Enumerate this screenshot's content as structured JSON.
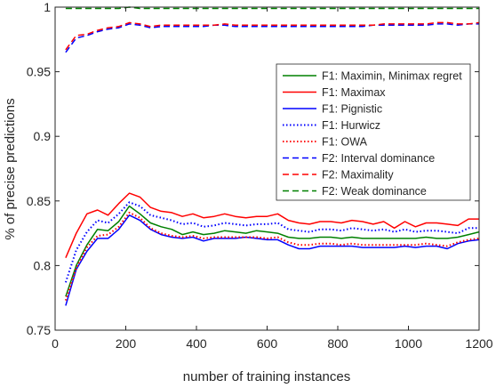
{
  "chart_data": {
    "type": "line",
    "xlabel": "number of training instances",
    "ylabel": "% of precise predictions",
    "xlim": [
      0,
      1200
    ],
    "ylim": [
      0.75,
      1
    ],
    "xticks": [
      0,
      200,
      400,
      600,
      800,
      1000,
      1200
    ],
    "yticks": [
      0.75,
      0.8,
      0.85,
      0.9,
      0.95,
      1
    ],
    "xtick_labels": [
      "0",
      "200",
      "400",
      "600",
      "800",
      "1000",
      "1200"
    ],
    "ytick_labels": [
      "0.75",
      "0.8",
      "0.85",
      "0.9",
      "0.95",
      "1"
    ],
    "grid": false,
    "legend_position": "upper-right",
    "x": [
      30,
      60,
      90,
      120,
      150,
      180,
      210,
      240,
      270,
      300,
      330,
      360,
      390,
      420,
      450,
      480,
      510,
      540,
      570,
      600,
      630,
      660,
      690,
      720,
      750,
      780,
      810,
      840,
      870,
      900,
      930,
      960,
      990,
      1020,
      1050,
      1080,
      1110,
      1140,
      1170,
      1200
    ],
    "series": [
      {
        "name": "F1: Maximin, Minimax regret",
        "color": "#008000",
        "dash": "solid",
        "values": [
          0.776,
          0.8,
          0.816,
          0.828,
          0.827,
          0.834,
          0.846,
          0.84,
          0.833,
          0.83,
          0.828,
          0.824,
          0.826,
          0.824,
          0.825,
          0.827,
          0.826,
          0.825,
          0.827,
          0.826,
          0.825,
          0.822,
          0.821,
          0.821,
          0.822,
          0.822,
          0.821,
          0.822,
          0.821,
          0.821,
          0.821,
          0.821,
          0.821,
          0.821,
          0.822,
          0.821,
          0.821,
          0.822,
          0.824,
          0.826
        ]
      },
      {
        "name": "F1: Maximax",
        "color": "#ff0000",
        "dash": "solid",
        "values": [
          0.806,
          0.825,
          0.84,
          0.843,
          0.839,
          0.848,
          0.856,
          0.853,
          0.845,
          0.842,
          0.841,
          0.838,
          0.84,
          0.837,
          0.838,
          0.84,
          0.838,
          0.837,
          0.838,
          0.838,
          0.84,
          0.835,
          0.833,
          0.832,
          0.834,
          0.834,
          0.833,
          0.835,
          0.834,
          0.832,
          0.834,
          0.829,
          0.834,
          0.83,
          0.833,
          0.833,
          0.832,
          0.831,
          0.836,
          0.836
        ]
      },
      {
        "name": "F1: Pignistic",
        "color": "#0000ff",
        "dash": "solid",
        "values": [
          0.769,
          0.797,
          0.811,
          0.821,
          0.821,
          0.828,
          0.839,
          0.835,
          0.828,
          0.824,
          0.822,
          0.821,
          0.822,
          0.819,
          0.821,
          0.821,
          0.821,
          0.822,
          0.821,
          0.82,
          0.82,
          0.816,
          0.813,
          0.813,
          0.815,
          0.815,
          0.815,
          0.815,
          0.814,
          0.814,
          0.814,
          0.814,
          0.815,
          0.814,
          0.815,
          0.815,
          0.813,
          0.817,
          0.819,
          0.82
        ]
      },
      {
        "name": "F1: Hurwicz",
        "color": "#0000ff",
        "dash": "dotted",
        "values": [
          0.787,
          0.812,
          0.826,
          0.835,
          0.833,
          0.84,
          0.849,
          0.846,
          0.839,
          0.837,
          0.835,
          0.832,
          0.833,
          0.83,
          0.831,
          0.833,
          0.832,
          0.831,
          0.832,
          0.832,
          0.833,
          0.828,
          0.827,
          0.826,
          0.828,
          0.828,
          0.827,
          0.829,
          0.828,
          0.827,
          0.828,
          0.826,
          0.828,
          0.826,
          0.827,
          0.827,
          0.826,
          0.825,
          0.829,
          0.829
        ]
      },
      {
        "name": "F1: OWA",
        "color": "#ff0000",
        "dash": "dotted",
        "values": [
          0.773,
          0.798,
          0.814,
          0.823,
          0.824,
          0.83,
          0.841,
          0.837,
          0.829,
          0.825,
          0.823,
          0.822,
          0.823,
          0.821,
          0.822,
          0.822,
          0.822,
          0.822,
          0.822,
          0.821,
          0.822,
          0.818,
          0.816,
          0.816,
          0.817,
          0.817,
          0.816,
          0.817,
          0.816,
          0.816,
          0.816,
          0.816,
          0.816,
          0.816,
          0.817,
          0.816,
          0.815,
          0.818,
          0.82,
          0.821
        ]
      },
      {
        "name": "F2: Interval dominance",
        "color": "#0000ff",
        "dash": "dashed",
        "values": [
          0.965,
          0.976,
          0.978,
          0.981,
          0.983,
          0.984,
          0.987,
          0.986,
          0.984,
          0.985,
          0.985,
          0.985,
          0.985,
          0.985,
          0.986,
          0.986,
          0.985,
          0.985,
          0.985,
          0.985,
          0.985,
          0.985,
          0.985,
          0.985,
          0.985,
          0.985,
          0.985,
          0.985,
          0.985,
          0.986,
          0.986,
          0.986,
          0.986,
          0.986,
          0.986,
          0.987,
          0.987,
          0.986,
          0.987,
          0.987
        ]
      },
      {
        "name": "F2: Maximality",
        "color": "#ff0000",
        "dash": "dashed",
        "values": [
          0.967,
          0.978,
          0.979,
          0.982,
          0.984,
          0.985,
          0.988,
          0.987,
          0.985,
          0.986,
          0.986,
          0.986,
          0.986,
          0.986,
          0.986,
          0.987,
          0.986,
          0.986,
          0.986,
          0.986,
          0.986,
          0.986,
          0.986,
          0.986,
          0.986,
          0.986,
          0.986,
          0.986,
          0.986,
          0.986,
          0.987,
          0.987,
          0.987,
          0.987,
          0.987,
          0.988,
          0.988,
          0.987,
          0.987,
          0.988
        ]
      },
      {
        "name": "F2: Weak dominance",
        "color": "#008000",
        "dash": "dashed",
        "values": [
          0.999,
          0.999,
          0.999,
          0.999,
          0.999,
          0.999,
          1.0,
          0.999,
          0.999,
          0.999,
          0.999,
          0.999,
          0.999,
          0.999,
          0.999,
          0.999,
          0.999,
          0.999,
          0.999,
          0.999,
          0.999,
          0.999,
          0.999,
          0.999,
          0.999,
          0.999,
          0.999,
          0.999,
          0.999,
          0.999,
          0.999,
          0.999,
          0.999,
          0.999,
          0.999,
          0.999,
          0.999,
          0.999,
          0.999,
          0.999
        ]
      }
    ]
  }
}
